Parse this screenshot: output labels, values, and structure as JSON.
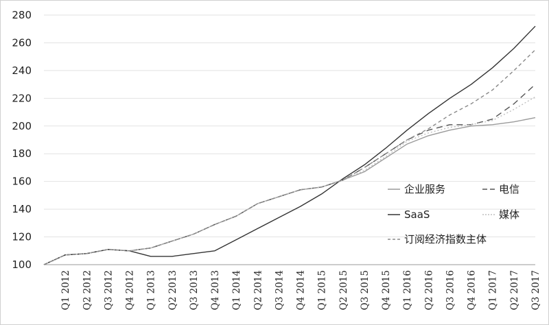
{
  "chart_data": {
    "type": "line",
    "title": "",
    "xlabel": "",
    "ylabel": "",
    "ylim": [
      100,
      280
    ],
    "y_ticks": [
      "100",
      "120",
      "140",
      "160",
      "180",
      "200",
      "220",
      "240",
      "260",
      "280"
    ],
    "categories": [
      "",
      "Q1 2012",
      "Q2 2012",
      "Q3 2012",
      "Q4 2012",
      "Q1 2013",
      "Q2 2013",
      "Q3 2013",
      "Q4 2013",
      "Q1 2014",
      "Q2 2014",
      "Q3 2014",
      "Q4 2014",
      "Q1 2015",
      "Q2 2015",
      "Q3 2015",
      "Q4 2015",
      "Q1 2016",
      "Q2 2016",
      "Q3 2016",
      "Q4 2016",
      "Q1 2017",
      "Q2 2017",
      "Q3 2017"
    ],
    "grid": true,
    "legend_position": "right",
    "series": [
      {
        "name": "企业服务",
        "color": "#9a9a9a",
        "dash": "solid",
        "values": [
          100,
          107,
          108,
          111,
          110,
          112,
          117,
          122,
          129,
          135,
          144,
          149,
          154,
          156,
          161,
          167,
          177,
          187,
          193,
          197,
          200,
          201,
          203,
          206
        ]
      },
      {
        "name": "电信",
        "color": "#555555",
        "dash": "long",
        "values": [
          100,
          107,
          108,
          111,
          110,
          112,
          117,
          122,
          129,
          135,
          144,
          149,
          154,
          156,
          161,
          170,
          180,
          190,
          197,
          201,
          201,
          205,
          216,
          230
        ]
      },
      {
        "name": "SaaS",
        "color": "#333333",
        "dash": "solid",
        "values": [
          100,
          107,
          108,
          111,
          110,
          106,
          106,
          108,
          110,
          118,
          126,
          134,
          142,
          151,
          162,
          172,
          184,
          197,
          209,
          220,
          230,
          242,
          256,
          272
        ]
      },
      {
        "name": "媒体",
        "color": "#bfbfbf",
        "dash": "dot",
        "values": [
          100,
          107,
          108,
          111,
          110,
          112,
          117,
          122,
          129,
          135,
          144,
          149,
          154,
          156,
          161,
          168,
          178,
          189,
          195,
          199,
          201,
          204,
          212,
          221
        ]
      },
      {
        "name": "订阅经济指数主体",
        "color": "#888888",
        "dash": "short",
        "values": [
          100,
          107,
          108,
          111,
          110,
          112,
          117,
          122,
          129,
          135,
          144,
          149,
          154,
          156,
          161,
          170,
          180,
          190,
          198,
          208,
          216,
          226,
          240,
          255
        ]
      }
    ]
  }
}
